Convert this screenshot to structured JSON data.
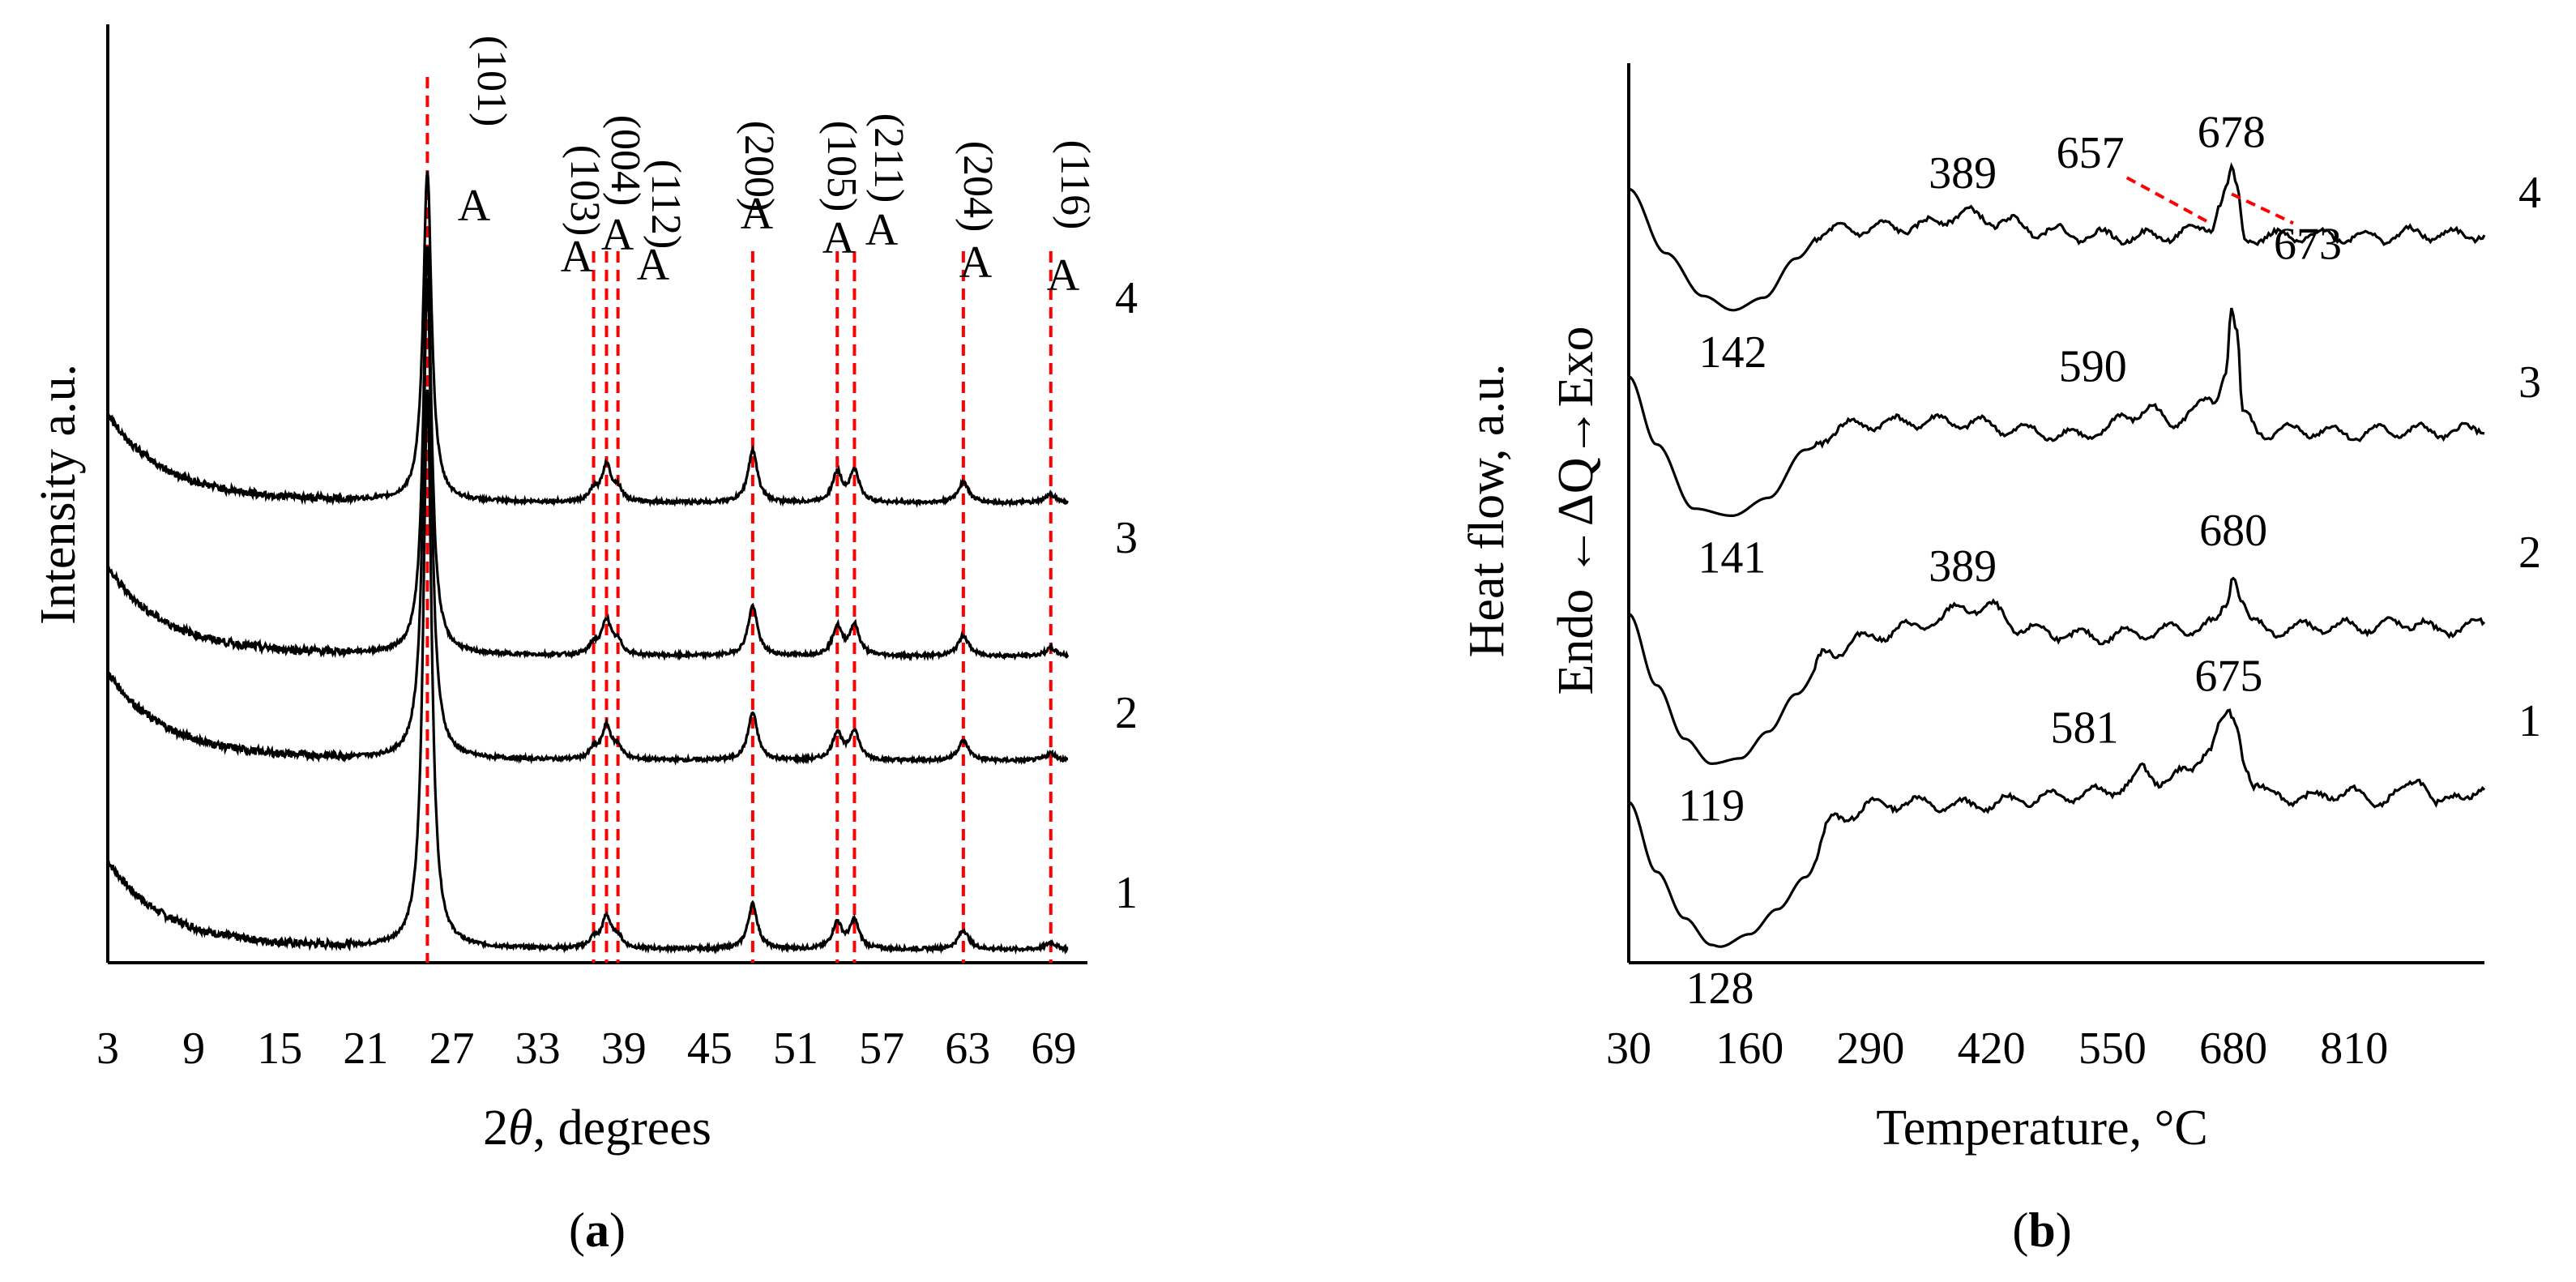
{
  "chart_data": [
    {
      "type": "line",
      "panel": "a",
      "caption": {
        "open": "(",
        "letter": "a",
        "close": ")"
      },
      "ylabel": "Intensity a.u.",
      "xlabel": {
        "prefix": "2",
        "theta": "θ",
        "suffix": ", degrees"
      },
      "xlim": [
        3,
        70
      ],
      "xticks": [
        3,
        9,
        15,
        21,
        27,
        33,
        39,
        45,
        51,
        57,
        63,
        69
      ],
      "series_labels": [
        "1",
        "2",
        "3",
        "4"
      ],
      "series_offsets": [
        0,
        1,
        2,
        3
      ],
      "peaks": [
        {
          "x": 25.3,
          "hkl": "(101)",
          "phase": "A",
          "h1": 16.0,
          "h4": 9.5,
          "w": 0.35
        },
        {
          "x": 36.9,
          "hkl": "(103)",
          "phase": "A",
          "h1": 0.25,
          "h4": 0.3,
          "w": 0.35
        },
        {
          "x": 37.8,
          "hkl": "(004)",
          "phase": "A",
          "h1": 0.9,
          "h4": 1.05,
          "w": 0.4
        },
        {
          "x": 38.6,
          "hkl": "(112)",
          "phase": "A",
          "h1": 0.3,
          "h4": 0.35,
          "w": 0.35
        },
        {
          "x": 48.0,
          "hkl": "(200)",
          "phase": "A",
          "h1": 1.3,
          "h4": 1.5,
          "w": 0.4
        },
        {
          "x": 53.9,
          "hkl": "(105)",
          "phase": "A",
          "h1": 0.75,
          "h4": 0.85,
          "w": 0.4
        },
        {
          "x": 55.1,
          "hkl": "(211)",
          "phase": "A",
          "h1": 0.8,
          "h4": 0.9,
          "w": 0.4
        },
        {
          "x": 62.7,
          "hkl": "(204)",
          "phase": "A",
          "h1": 0.55,
          "h4": 0.6,
          "w": 0.45
        },
        {
          "x": 68.8,
          "hkl": "(116)",
          "phase": "A",
          "h1": 0.2,
          "h4": 0.25,
          "w": 0.45
        }
      ]
    },
    {
      "type": "line",
      "panel": "b",
      "caption": {
        "open": "(",
        "letter": "b",
        "close": ")"
      },
      "ylabel_line1": "Heat flow, a.u.",
      "ylabel_line2": "Endo ←ΔQ→Exo",
      "xlabel": "Temperature, °C",
      "xlim": [
        30,
        950
      ],
      "xticks": [
        30,
        160,
        290,
        420,
        550,
        680,
        810
      ],
      "series_labels": [
        "1",
        "2",
        "3",
        "4"
      ],
      "series": [
        {
          "name": "1",
          "points": [
            [
              30,
              -100
            ],
            [
              60,
              -490
            ],
            [
              90,
              -750
            ],
            [
              119,
              -900
            ],
            [
              128,
              -910
            ],
            [
              160,
              -840
            ],
            [
              190,
              -700
            ],
            [
              220,
              -520
            ],
            [
              250,
              -200
            ],
            [
              290,
              -120
            ],
            [
              330,
              -100
            ],
            [
              380,
              -120
            ],
            [
              420,
              -110
            ],
            [
              460,
              -80
            ],
            [
              500,
              -60
            ],
            [
              540,
              -40
            ],
            [
              570,
              0
            ],
            [
              581,
              80
            ],
            [
              600,
              30
            ],
            [
              630,
              60
            ],
            [
              655,
              220
            ],
            [
              665,
              320
            ],
            [
              675,
              380
            ],
            [
              684,
              320
            ],
            [
              693,
              120
            ],
            [
              703,
              0
            ],
            [
              720,
              -60
            ],
            [
              760,
              -80
            ],
            [
              800,
              -40
            ],
            [
              830,
              -90
            ],
            [
              860,
              -60
            ],
            [
              880,
              50
            ],
            [
              900,
              -120
            ],
            [
              930,
              -40
            ],
            [
              950,
              -50
            ]
          ],
          "labels": [
            {
              "text": "128",
              "t": 128,
              "val": -910,
              "pos": "below"
            },
            {
              "text": "581",
              "t": 581,
              "val": 80,
              "pos": "above-left"
            },
            {
              "text": "675",
              "t": 675,
              "val": 380,
              "pos": "above"
            }
          ]
        },
        {
          "name": "2",
          "points": [
            [
              30,
              20
            ],
            [
              60,
              -380
            ],
            [
              90,
              -680
            ],
            [
              119,
              -820
            ],
            [
              150,
              -790
            ],
            [
              180,
              -640
            ],
            [
              210,
              -430
            ],
            [
              245,
              -200
            ],
            [
              280,
              -120
            ],
            [
              330,
              -60
            ],
            [
              360,
              -20
            ],
            [
              389,
              60
            ],
            [
              420,
              50
            ],
            [
              450,
              -60
            ],
            [
              490,
              -90
            ],
            [
              530,
              -110
            ],
            [
              570,
              -90
            ],
            [
              620,
              -70
            ],
            [
              660,
              -40
            ],
            [
              672,
              60
            ],
            [
              680,
              260
            ],
            [
              688,
              130
            ],
            [
              700,
              -40
            ],
            [
              720,
              -70
            ],
            [
              780,
              -50
            ],
            [
              820,
              -50
            ],
            [
              860,
              -40
            ],
            [
              880,
              -20
            ],
            [
              900,
              -90
            ],
            [
              930,
              -40
            ],
            [
              950,
              -50
            ]
          ],
          "labels": [
            {
              "text": "119",
              "t": 119,
              "val": -820,
              "pos": "below"
            },
            {
              "text": "389",
              "t": 389,
              "val": 60,
              "pos": "above"
            },
            {
              "text": "680",
              "t": 680,
              "val": 260,
              "pos": "above"
            }
          ]
        },
        {
          "name": "3",
          "points": [
            [
              30,
              160
            ],
            [
              60,
              -220
            ],
            [
              100,
              -580
            ],
            [
              141,
              -620
            ],
            [
              180,
              -520
            ],
            [
              220,
              -250
            ],
            [
              260,
              -120
            ],
            [
              300,
              -100
            ],
            [
              350,
              -90
            ],
            [
              400,
              -100
            ],
            [
              450,
              -140
            ],
            [
              500,
              -170
            ],
            [
              540,
              -150
            ],
            [
              565,
              -60
            ],
            [
              590,
              -20
            ],
            [
              610,
              -100
            ],
            [
              640,
              -20
            ],
            [
              660,
              20
            ],
            [
              672,
              200
            ],
            [
              678,
              560
            ],
            [
              684,
              400
            ],
            [
              690,
              -60
            ],
            [
              710,
              -150
            ],
            [
              760,
              -140
            ],
            [
              810,
              -160
            ],
            [
              860,
              -140
            ],
            [
              900,
              -150
            ],
            [
              940,
              -140
            ],
            [
              950,
              -120
            ]
          ],
          "labels": [
            {
              "text": "141",
              "t": 141,
              "val": -620,
              "pos": "below"
            },
            {
              "text": "590",
              "t": 590,
              "val": -20,
              "pos": "above-left"
            }
          ]
        },
        {
          "name": "4",
          "points": [
            [
              30,
              240
            ],
            [
              70,
              -120
            ],
            [
              110,
              -360
            ],
            [
              142,
              -440
            ],
            [
              175,
              -370
            ],
            [
              210,
              -150
            ],
            [
              240,
              0
            ],
            [
              290,
              20
            ],
            [
              340,
              30
            ],
            [
              389,
              100
            ],
            [
              430,
              60
            ],
            [
              470,
              10
            ],
            [
              520,
              -20
            ],
            [
              580,
              -30
            ],
            [
              630,
              -10
            ],
            [
              657,
              40
            ],
            [
              665,
              160
            ],
            [
              672,
              230
            ],
            [
              678,
              330
            ],
            [
              684,
              230
            ],
            [
              692,
              -30
            ],
            [
              720,
              -30
            ],
            [
              780,
              -20
            ],
            [
              830,
              -30
            ],
            [
              880,
              -10
            ],
            [
              920,
              -20
            ],
            [
              950,
              -10
            ]
          ],
          "labels": [
            {
              "text": "142",
              "t": 142,
              "val": -440,
              "pos": "below"
            },
            {
              "text": "389",
              "t": 389,
              "val": 100,
              "pos": "above"
            },
            {
              "text": "657",
              "t": 657,
              "val": 40,
              "pos": "left"
            },
            {
              "text": "678",
              "t": 678,
              "val": 330,
              "pos": "above"
            },
            {
              "text": "673",
              "t": 673,
              "val": 230,
              "pos": "right-down"
            }
          ]
        }
      ]
    }
  ]
}
